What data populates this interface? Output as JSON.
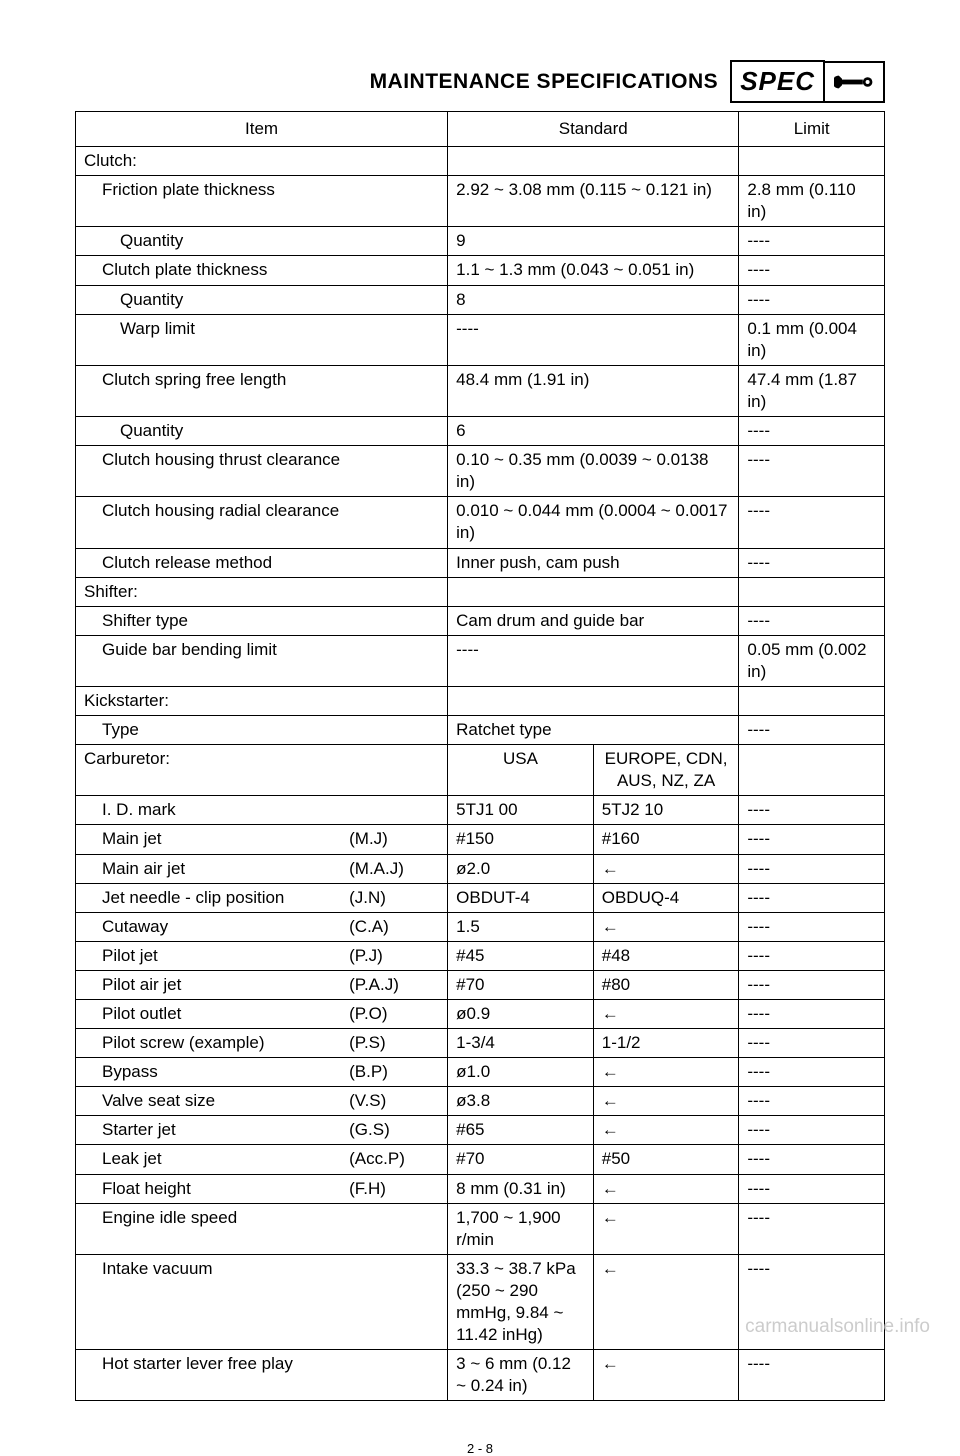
{
  "header": {
    "title": "MAINTENANCE SPECIFICATIONS",
    "spec_label": "SPEC"
  },
  "table": {
    "headers": {
      "item": "Item",
      "standard": "Standard",
      "limit": "Limit"
    },
    "carb_headers": {
      "usa": "USA",
      "other": "EUROPE, CDN, AUS, NZ, ZA"
    }
  },
  "sections": [
    {
      "title": "Clutch:",
      "rows": [
        {
          "indent": 1,
          "item": "Friction plate thickness",
          "std": "2.92 ~ 3.08 mm (0.115 ~ 0.121 in)",
          "lim": "2.8 mm (0.110 in)"
        },
        {
          "indent": 2,
          "item": "Quantity",
          "std": "9",
          "lim": "----"
        },
        {
          "indent": 1,
          "item": "Clutch plate thickness",
          "std": "1.1 ~ 1.3 mm (0.043 ~ 0.051 in)",
          "lim": "----"
        },
        {
          "indent": 2,
          "item": "Quantity",
          "std": "8",
          "lim": "----"
        },
        {
          "indent": 2,
          "item": "Warp limit",
          "std": "----",
          "lim": "0.1 mm (0.004 in)"
        },
        {
          "indent": 1,
          "item": "Clutch spring free length",
          "std": "48.4 mm (1.91 in)",
          "lim": "47.4 mm (1.87 in)"
        },
        {
          "indent": 2,
          "item": "Quantity",
          "std": "6",
          "lim": "----"
        },
        {
          "indent": 1,
          "item": "Clutch housing thrust clearance",
          "std": "0.10 ~ 0.35 mm (0.0039 ~ 0.0138 in)",
          "lim": "----"
        },
        {
          "indent": 1,
          "item": "Clutch housing radial clearance",
          "std": "0.010 ~ 0.044 mm (0.0004 ~ 0.0017 in)",
          "lim": "----"
        },
        {
          "indent": 1,
          "item": "Clutch release method",
          "std": "Inner push, cam push",
          "lim": "----"
        }
      ]
    },
    {
      "title": "Shifter:",
      "rows": [
        {
          "indent": 1,
          "item": "Shifter type",
          "std": "Cam drum and guide bar",
          "lim": "----"
        },
        {
          "indent": 1,
          "item": "Guide bar bending limit",
          "std": "----",
          "lim": "0.05 mm (0.002 in)"
        }
      ]
    },
    {
      "title": "Kickstarter:",
      "rows": [
        {
          "indent": 1,
          "item": "Type",
          "std": "Ratchet type",
          "lim": "----"
        }
      ]
    }
  ],
  "carburetor": {
    "title": "Carburetor:",
    "rows": [
      {
        "item": "I. D. mark",
        "abbr": "",
        "usa": "5TJ1 00",
        "other": "5TJ2 10",
        "lim": "----"
      },
      {
        "item": "Main jet",
        "abbr": "(M.J)",
        "usa": "#150",
        "other": "#160",
        "lim": "----"
      },
      {
        "item": "Main air jet",
        "abbr": "(M.A.J)",
        "usa": "ø2.0",
        "other": "←",
        "lim": "----"
      },
      {
        "item": "Jet needle - clip position",
        "abbr": "(J.N)",
        "usa": "OBDUT-4",
        "other": "OBDUQ-4",
        "lim": "----"
      },
      {
        "item": "Cutaway",
        "abbr": "(C.A)",
        "usa": "1.5",
        "other": "←",
        "lim": "----"
      },
      {
        "item": "Pilot jet",
        "abbr": "(P.J)",
        "usa": "#45",
        "other": "#48",
        "lim": "----"
      },
      {
        "item": "Pilot air jet",
        "abbr": "(P.A.J)",
        "usa": "#70",
        "other": "#80",
        "lim": "----"
      },
      {
        "item": "Pilot outlet",
        "abbr": "(P.O)",
        "usa": "ø0.9",
        "other": "←",
        "lim": "----"
      },
      {
        "item": "Pilot screw (example)",
        "abbr": "(P.S)",
        "usa": "1-3/4",
        "other": "1-1/2",
        "lim": "----"
      },
      {
        "item": "Bypass",
        "abbr": "(B.P)",
        "usa": "ø1.0",
        "other": "←",
        "lim": "----"
      },
      {
        "item": "Valve seat size",
        "abbr": "(V.S)",
        "usa": "ø3.8",
        "other": "←",
        "lim": "----"
      },
      {
        "item": "Starter jet",
        "abbr": "(G.S)",
        "usa": "#65",
        "other": "←",
        "lim": "----"
      },
      {
        "item": "Leak jet",
        "abbr": "(Acc.P)",
        "usa": "#70",
        "other": "#50",
        "lim": "----"
      },
      {
        "item": "Float height",
        "abbr": "(F.H)",
        "usa": "8 mm (0.31 in)",
        "other": "←",
        "lim": "----"
      },
      {
        "item": "Engine idle speed",
        "abbr": "",
        "usa": "1,700 ~ 1,900 r/min",
        "other": "←",
        "lim": "----"
      },
      {
        "item": "Intake vacuum",
        "abbr": "",
        "usa": "33.3 ~ 38.7 kPa (250 ~ 290 mmHg, 9.84 ~ 11.42 inHg)",
        "other": "←",
        "lim": "----"
      },
      {
        "item": "Hot starter lever free play",
        "abbr": "",
        "usa": "3 ~ 6 mm (0.12 ~ 0.24 in)",
        "other": "←",
        "lim": "----"
      }
    ]
  },
  "footer": {
    "page": "2 - 8"
  },
  "watermark": "carmanualsonline.info",
  "colors": {
    "text": "#000000",
    "bg": "#ffffff",
    "watermark": "#cccccc"
  }
}
